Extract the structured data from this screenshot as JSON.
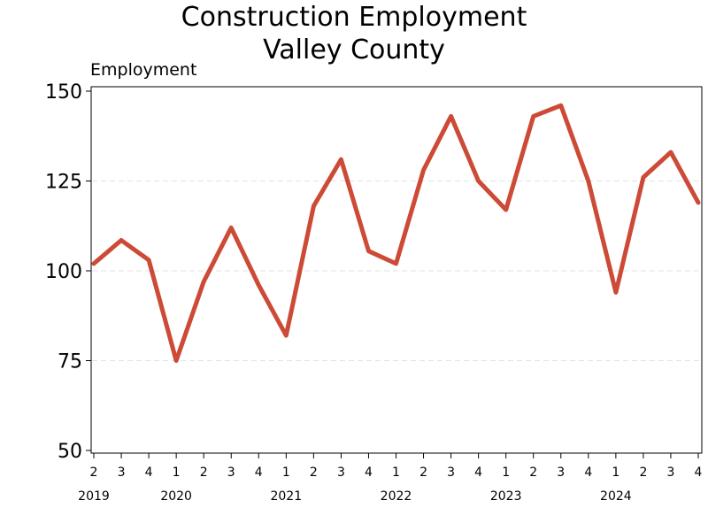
{
  "chart_data": {
    "type": "line",
    "title": "Construction Employment",
    "subtitle": "Valley County",
    "ylabel": "Employment",
    "xlabel": "",
    "ylim": [
      50,
      150
    ],
    "yticks": [
      "50",
      "75",
      "100",
      "125",
      "150"
    ],
    "grid": "horizontal dashed",
    "legend": "none",
    "line_color": "#cc4a36",
    "x": [
      "2",
      "3",
      "4",
      "1",
      "2",
      "3",
      "4",
      "1",
      "2",
      "3",
      "4",
      "1",
      "2",
      "3",
      "4",
      "1",
      "2",
      "3",
      "4",
      "1",
      "2",
      "3",
      "4"
    ],
    "years": [
      {
        "label": "2019",
        "index": 0
      },
      {
        "label": "2020",
        "index": 3
      },
      {
        "label": "2021",
        "index": 7
      },
      {
        "label": "2022",
        "index": 11
      },
      {
        "label": "2023",
        "index": 15
      },
      {
        "label": "2024",
        "index": 19
      }
    ],
    "values": [
      102,
      108.5,
      103,
      75,
      97,
      112,
      96,
      82,
      118,
      131,
      105.5,
      102,
      128,
      143,
      125,
      117,
      143,
      146,
      125,
      94,
      126,
      133,
      119
    ]
  }
}
